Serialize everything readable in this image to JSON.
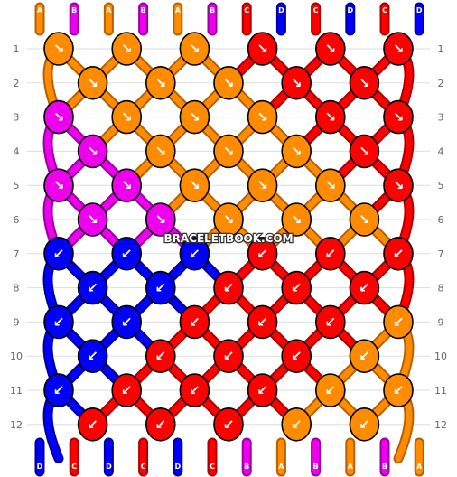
{
  "colors": {
    "A": "#ff8c00",
    "B": "#ee00ee",
    "C": "#ff0000",
    "D": "#0000ff"
  },
  "watermark": "BRACELETBOOK.COM",
  "rows": [
    "1",
    "2",
    "3",
    "4",
    "5",
    "6",
    "7",
    "8",
    "9",
    "10",
    "11",
    "12"
  ],
  "top_strands": [
    "A",
    "B",
    "A",
    "B",
    "A",
    "B",
    "C",
    "D",
    "C",
    "D",
    "C",
    "D"
  ],
  "bottom_strands": [
    "D",
    "C",
    "D",
    "C",
    "D",
    "C",
    "B",
    "A",
    "B",
    "A",
    "B",
    "A"
  ],
  "knots": [
    {
      "row": 1,
      "col": 0,
      "color": "A",
      "arrow": "↘"
    },
    {
      "row": 1,
      "col": 2,
      "color": "A",
      "arrow": "↘"
    },
    {
      "row": 1,
      "col": 4,
      "color": "A",
      "arrow": "↘"
    },
    {
      "row": 1,
      "col": 6,
      "color": "C",
      "arrow": "↘"
    },
    {
      "row": 1,
      "col": 8,
      "color": "C",
      "arrow": "↘"
    },
    {
      "row": 1,
      "col": 10,
      "color": "C",
      "arrow": "↘"
    },
    {
      "row": 2,
      "col": 1,
      "color": "A",
      "arrow": "↘"
    },
    {
      "row": 2,
      "col": 3,
      "color": "A",
      "arrow": "↘"
    },
    {
      "row": 2,
      "col": 5,
      "color": "A",
      "arrow": "↘"
    },
    {
      "row": 2,
      "col": 7,
      "color": "C",
      "arrow": "↘"
    },
    {
      "row": 2,
      "col": 9,
      "color": "C",
      "arrow": "↘"
    },
    {
      "row": 3,
      "col": 0,
      "color": "B",
      "arrow": "↘"
    },
    {
      "row": 3,
      "col": 2,
      "color": "A",
      "arrow": "↘"
    },
    {
      "row": 3,
      "col": 4,
      "color": "A",
      "arrow": "↘"
    },
    {
      "row": 3,
      "col": 6,
      "color": "A",
      "arrow": "↘"
    },
    {
      "row": 3,
      "col": 8,
      "color": "C",
      "arrow": "↘"
    },
    {
      "row": 3,
      "col": 10,
      "color": "C",
      "arrow": "↘"
    },
    {
      "row": 4,
      "col": 1,
      "color": "B",
      "arrow": "↘"
    },
    {
      "row": 4,
      "col": 3,
      "color": "A",
      "arrow": "↘"
    },
    {
      "row": 4,
      "col": 5,
      "color": "A",
      "arrow": "↘"
    },
    {
      "row": 4,
      "col": 7,
      "color": "A",
      "arrow": "↘"
    },
    {
      "row": 4,
      "col": 9,
      "color": "C",
      "arrow": "↘"
    },
    {
      "row": 5,
      "col": 0,
      "color": "B",
      "arrow": "↘"
    },
    {
      "row": 5,
      "col": 2,
      "color": "B",
      "arrow": "↘"
    },
    {
      "row": 5,
      "col": 4,
      "color": "A",
      "arrow": "↘"
    },
    {
      "row": 5,
      "col": 6,
      "color": "A",
      "arrow": "↘"
    },
    {
      "row": 5,
      "col": 8,
      "color": "A",
      "arrow": "↘"
    },
    {
      "row": 5,
      "col": 10,
      "color": "C",
      "arrow": "↘"
    },
    {
      "row": 6,
      "col": 1,
      "color": "B",
      "arrow": "↘"
    },
    {
      "row": 6,
      "col": 3,
      "color": "B",
      "arrow": "↘"
    },
    {
      "row": 6,
      "col": 5,
      "color": "A",
      "arrow": "↘"
    },
    {
      "row": 6,
      "col": 7,
      "color": "A",
      "arrow": "↘"
    },
    {
      "row": 6,
      "col": 9,
      "color": "A",
      "arrow": "↘"
    },
    {
      "row": 7,
      "col": 0,
      "color": "D",
      "arrow": "↙"
    },
    {
      "row": 7,
      "col": 2,
      "color": "D",
      "arrow": "↙"
    },
    {
      "row": 7,
      "col": 4,
      "color": "D",
      "arrow": "↙"
    },
    {
      "row": 7,
      "col": 6,
      "color": "C",
      "arrow": "↙"
    },
    {
      "row": 7,
      "col": 8,
      "color": "C",
      "arrow": "↙"
    },
    {
      "row": 7,
      "col": 10,
      "color": "C",
      "arrow": "↙"
    },
    {
      "row": 8,
      "col": 1,
      "color": "D",
      "arrow": "↙"
    },
    {
      "row": 8,
      "col": 3,
      "color": "D",
      "arrow": "↙"
    },
    {
      "row": 8,
      "col": 5,
      "color": "C",
      "arrow": "↙"
    },
    {
      "row": 8,
      "col": 7,
      "color": "C",
      "arrow": "↙"
    },
    {
      "row": 8,
      "col": 9,
      "color": "C",
      "arrow": "↙"
    },
    {
      "row": 9,
      "col": 0,
      "color": "D",
      "arrow": "↙"
    },
    {
      "row": 9,
      "col": 2,
      "color": "D",
      "arrow": "↙"
    },
    {
      "row": 9,
      "col": 4,
      "color": "C",
      "arrow": "↙"
    },
    {
      "row": 9,
      "col": 6,
      "color": "C",
      "arrow": "↙"
    },
    {
      "row": 9,
      "col": 8,
      "color": "C",
      "arrow": "↙"
    },
    {
      "row": 9,
      "col": 10,
      "color": "A",
      "arrow": "↙"
    },
    {
      "row": 10,
      "col": 1,
      "color": "D",
      "arrow": "↙"
    },
    {
      "row": 10,
      "col": 3,
      "color": "C",
      "arrow": "↙"
    },
    {
      "row": 10,
      "col": 5,
      "color": "C",
      "arrow": "↙"
    },
    {
      "row": 10,
      "col": 7,
      "color": "C",
      "arrow": "↙"
    },
    {
      "row": 10,
      "col": 9,
      "color": "A",
      "arrow": "↙"
    },
    {
      "row": 11,
      "col": 0,
      "color": "D",
      "arrow": "↙"
    },
    {
      "row": 11,
      "col": 2,
      "color": "C",
      "arrow": "↙"
    },
    {
      "row": 11,
      "col": 4,
      "color": "C",
      "arrow": "↙"
    },
    {
      "row": 11,
      "col": 6,
      "color": "C",
      "arrow": "↙"
    },
    {
      "row": 11,
      "col": 8,
      "color": "A",
      "arrow": "↙"
    },
    {
      "row": 11,
      "col": 10,
      "color": "A",
      "arrow": "↙"
    },
    {
      "row": 12,
      "col": 1,
      "color": "C",
      "arrow": "↙"
    },
    {
      "row": 12,
      "col": 3,
      "color": "C",
      "arrow": "↙"
    },
    {
      "row": 12,
      "col": 5,
      "color": "C",
      "arrow": "↙"
    },
    {
      "row": 12,
      "col": 7,
      "color": "A",
      "arrow": "↙"
    },
    {
      "row": 12,
      "col": 9,
      "color": "A",
      "arrow": "↙"
    }
  ]
}
